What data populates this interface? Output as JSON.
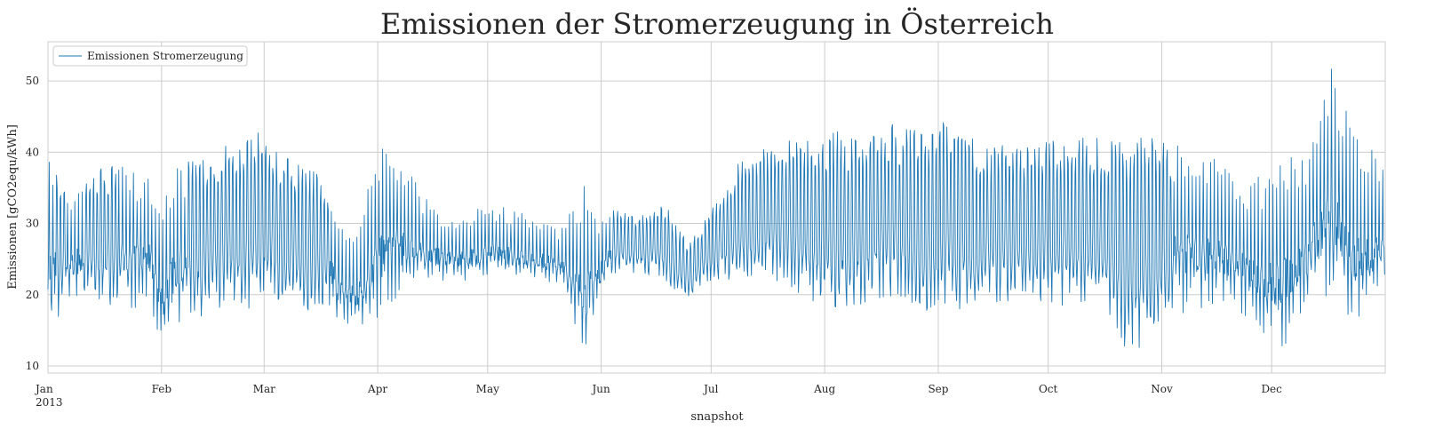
{
  "chart_data": {
    "type": "line",
    "title": "Emissionen der Stromerzeugung in Österreich",
    "xlabel": "snapshot",
    "ylabel": "Emissionen [gCO2equ/kWh]",
    "ylim": [
      9,
      55.5
    ],
    "yticks": [
      10,
      20,
      30,
      40,
      50
    ],
    "x_ticks": [
      {
        "label": "Jan",
        "day": 0,
        "sub": "2013"
      },
      {
        "label": "Feb",
        "day": 31
      },
      {
        "label": "Mar",
        "day": 59
      },
      {
        "label": "Apr",
        "day": 90
      },
      {
        "label": "May",
        "day": 120
      },
      {
        "label": "Jun",
        "day": 151
      },
      {
        "label": "Jul",
        "day": 181
      },
      {
        "label": "Aug",
        "day": 212
      },
      {
        "label": "Sep",
        "day": 243
      },
      {
        "label": "Oct",
        "day": 273
      },
      {
        "label": "Nov",
        "day": 304
      },
      {
        "label": "Dec",
        "day": 334
      }
    ],
    "xlim_days": [
      0,
      365
    ],
    "grid": true,
    "legend_position": "top-left",
    "series": [
      {
        "name": "Emissionen Stromerzeugung",
        "color": "#1f77b4",
        "x_dates": [
          "2013-01-01",
          "2013-01-08",
          "2013-01-15",
          "2013-01-22",
          "2013-01-29",
          "2013-02-01",
          "2013-02-05",
          "2013-02-12",
          "2013-02-19",
          "2013-02-26",
          "2013-03-01",
          "2013-03-05",
          "2013-03-12",
          "2013-03-19",
          "2013-03-22",
          "2013-03-26",
          "2013-04-01",
          "2013-04-05",
          "2013-04-09",
          "2013-04-16",
          "2013-04-23",
          "2013-04-30",
          "2013-05-07",
          "2013-05-14",
          "2013-05-21",
          "2013-05-28",
          "2013-06-01",
          "2013-06-04",
          "2013-06-11",
          "2013-06-18",
          "2013-06-25",
          "2013-07-01",
          "2013-07-09",
          "2013-07-16",
          "2013-07-23",
          "2013-07-30",
          "2013-08-06",
          "2013-08-13",
          "2013-08-20",
          "2013-08-27",
          "2013-09-03",
          "2013-09-10",
          "2013-09-17",
          "2013-09-24",
          "2013-10-01",
          "2013-10-08",
          "2013-10-15",
          "2013-10-22",
          "2013-10-29",
          "2013-11-05",
          "2013-11-12",
          "2013-11-19",
          "2013-11-26",
          "2013-12-03",
          "2013-12-10",
          "2013-12-17",
          "2013-12-24",
          "2013-12-31"
        ],
        "daily_max": [
          40.5,
          35,
          38,
          38,
          37,
          34,
          38,
          40,
          41.5,
          42.5,
          43.5,
          40,
          38,
          36,
          30,
          28,
          41,
          41,
          38,
          32,
          30,
          33,
          32,
          31,
          29,
          36,
          30,
          32,
          31,
          33,
          27,
          32,
          39,
          41,
          42,
          42.5,
          43,
          43,
          44,
          43,
          44.5,
          42,
          41,
          41.5,
          42,
          42,
          42,
          42,
          42,
          41,
          40,
          38,
          36,
          39,
          40,
          53.5,
          42,
          40
        ],
        "daily_min": [
          15,
          19,
          19,
          18,
          18,
          11.5,
          16,
          17,
          18,
          18,
          19,
          19,
          18,
          17,
          15,
          15,
          16,
          19,
          20,
          22,
          22,
          22,
          22,
          22,
          21,
          11.5,
          20,
          23,
          23,
          22,
          19,
          22,
          22,
          22,
          21,
          18,
          18,
          19,
          19,
          17,
          17,
          17,
          19,
          18,
          18,
          18,
          19,
          12,
          13,
          17,
          18,
          18,
          16,
          11.5,
          17,
          19,
          15,
          20
        ]
      }
    ]
  }
}
